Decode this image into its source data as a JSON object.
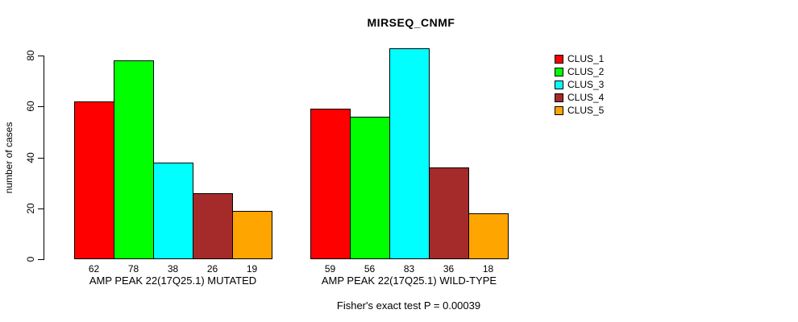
{
  "chart_title": "MIRSEQ_CNMF",
  "y_axis": {
    "label": "number of cases"
  },
  "footer_annotation": "Fisher's exact test P = 0.00039",
  "chart_data": {
    "type": "bar",
    "title": "MIRSEQ_CNMF",
    "xlabel": "",
    "ylabel": "number of cases",
    "ylim": [
      0,
      80
    ],
    "yticks": [
      0,
      20,
      40,
      60,
      80
    ],
    "grid": false,
    "legend_position": "right",
    "bar_outline_color": "#000000",
    "background_color": "#ffffff",
    "categories": [
      "AMP PEAK 22(17Q25.1) MUTATED",
      "AMP PEAK 22(17Q25.1) WILD-TYPE"
    ],
    "series": [
      {
        "name": "CLUS_1",
        "color": "#FF0000",
        "values": [
          62,
          59
        ]
      },
      {
        "name": "CLUS_2",
        "color": "#00FF00",
        "values": [
          78,
          56
        ]
      },
      {
        "name": "CLUS_3",
        "color": "#00FFFF",
        "values": [
          38,
          83
        ]
      },
      {
        "name": "CLUS_4",
        "color": "#A52A2A",
        "values": [
          26,
          36
        ]
      },
      {
        "name": "CLUS_5",
        "color": "#FFA500",
        "values": [
          19,
          18
        ]
      }
    ],
    "value_labels_shown": true,
    "annotation": "Fisher's exact test P = 0.00039"
  }
}
